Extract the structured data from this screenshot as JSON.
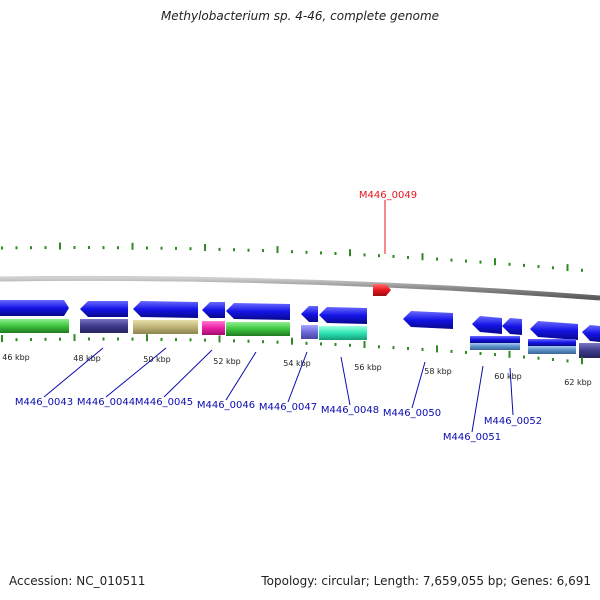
{
  "title": "Methylobacterium sp. 4-46, complete genome",
  "footer": {
    "accession": "Accession: NC_010511",
    "topology": "Topology: circular; Length: 7,659,055 bp; Genes: 6,691"
  },
  "colors": {
    "strand_arrow": "#1414e6",
    "backbone": "#8a8a8a",
    "ticks": "#2e8b22",
    "label_link": "#0b0bb0",
    "highlight": "#e8161c"
  },
  "scale_labels": [
    "46 kbp",
    "48 kbp",
    "50 kbp",
    "52 kbp",
    "54 kbp",
    "56 kbp",
    "58 kbp",
    "60 kbp",
    "62 kbp"
  ],
  "highlight_gene": "M446_0049",
  "genes": [
    "M446_0043",
    "M446_0044",
    "M446_0045",
    "M446_0046",
    "M446_0047",
    "M446_0048",
    "M446_0050",
    "M446_0051",
    "M446_0052"
  ]
}
